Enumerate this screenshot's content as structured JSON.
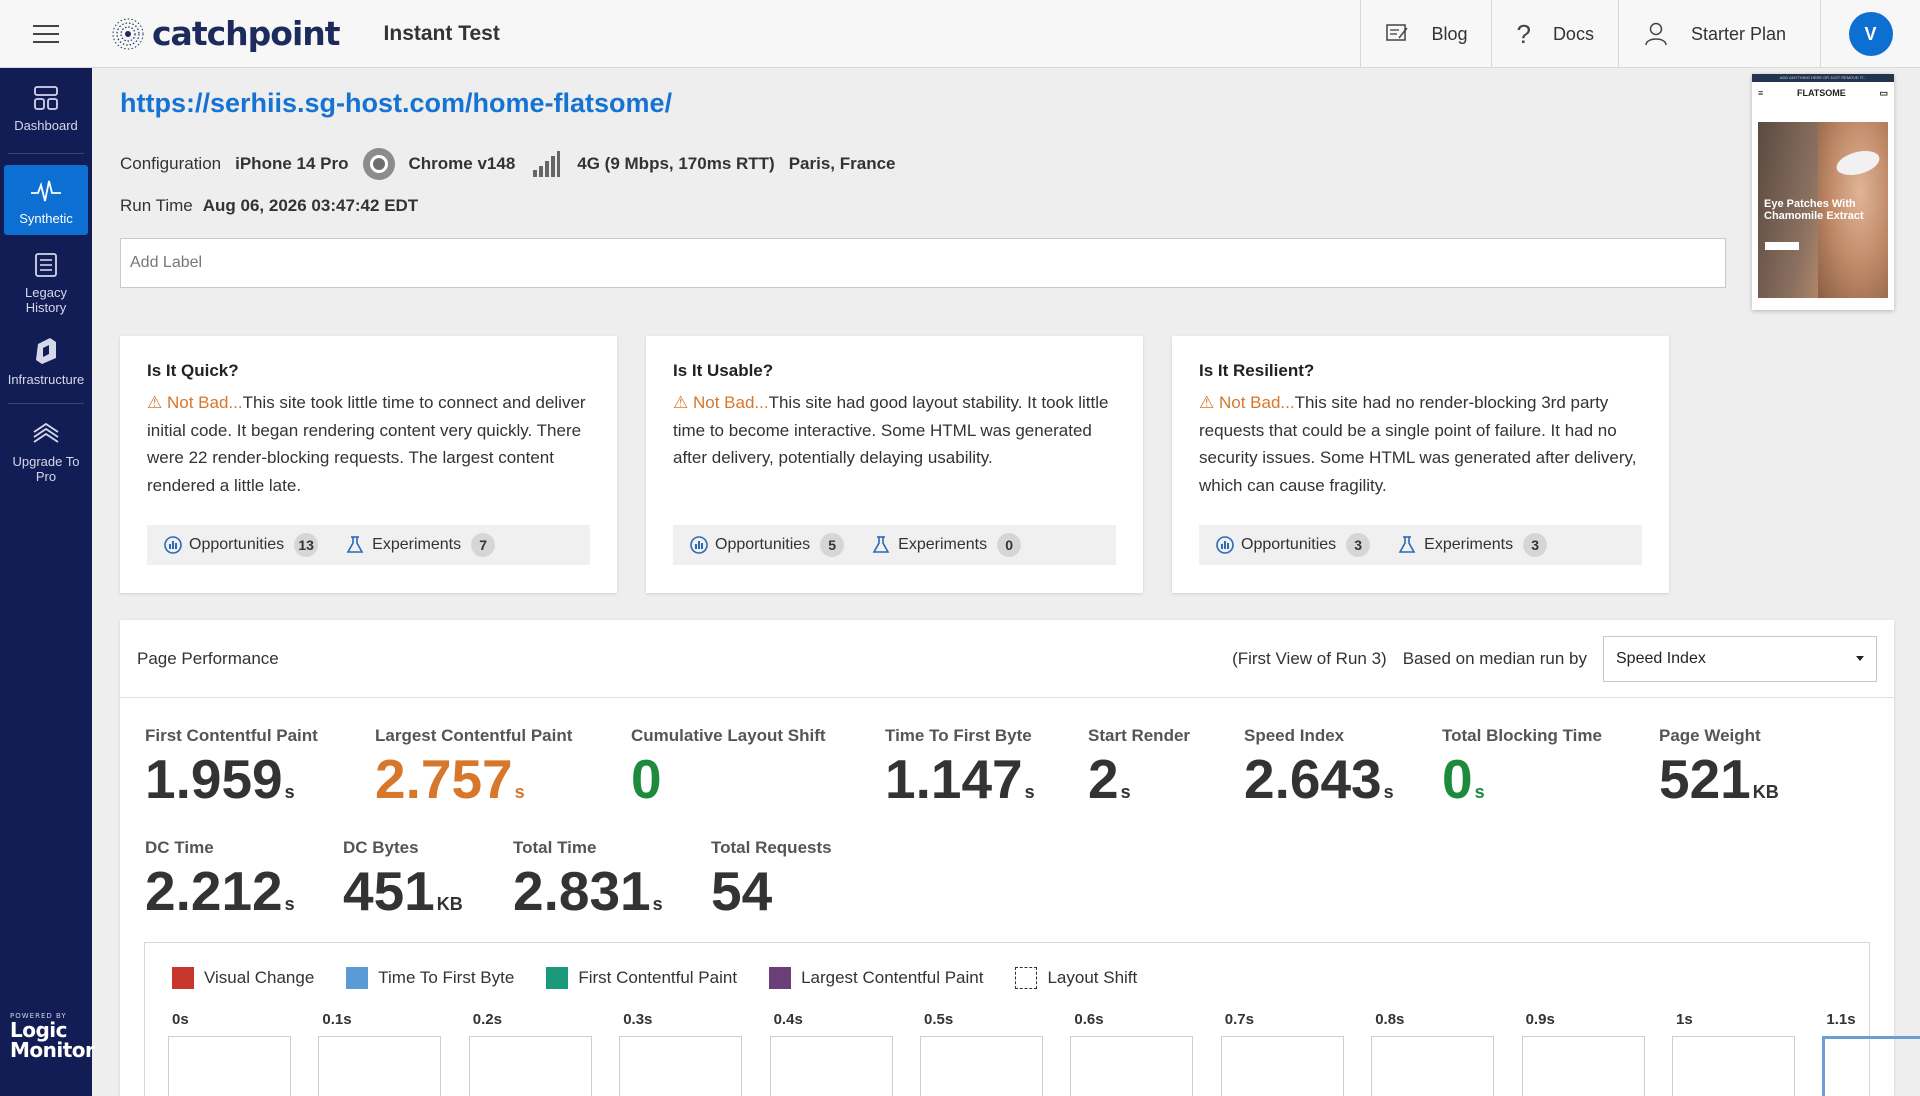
{
  "topbar": {
    "app_title": "Instant Test",
    "logo_text": "catchpoint",
    "blog_label": "Blog",
    "docs_label": "Docs",
    "plan_label": "Starter Plan",
    "avatar_initial": "V"
  },
  "sidebar": {
    "items": [
      {
        "label": "Dashboard",
        "icon": "dashboard-icon"
      },
      {
        "label": "Synthetic",
        "icon": "pulse-icon",
        "active": true
      },
      {
        "label": "Legacy History",
        "icon": "list-icon"
      },
      {
        "label": "Infrastructure",
        "icon": "infrastructure-icon"
      },
      {
        "label": "Upgrade To Pro",
        "icon": "layers-icon"
      }
    ],
    "powered_by": "POWERED BY",
    "brand_line1": "Logic",
    "brand_line2": "Monitor"
  },
  "test": {
    "url": "https://serhiis.sg-host.com/home-flatsome/",
    "config_label": "Configuration",
    "device": "iPhone 14 Pro",
    "browser": "Chrome v148",
    "connection": "4G (9 Mbps, 170ms RTT)",
    "location": "Paris, France",
    "run_time_label": "Run Time",
    "run_time": "Aug 06, 2026 03:47:42 EDT",
    "label_placeholder": "Add Label"
  },
  "thumbnail": {
    "banner": "ADD ANYTHING HERE OR JUST REMOVE IT...",
    "brand": "FLATSOME",
    "caption": "Eye Patches With Chamomile Extract"
  },
  "cards": [
    {
      "title": "Is It Quick?",
      "status": "Not Bad...",
      "text": "This site took little time to connect and deliver initial code. It began rendering content very quickly. There were 22 render-blocking requests. The largest content rendered a little late.",
      "opportunities_label": "Opportunities",
      "opportunities": "13",
      "experiments_label": "Experiments",
      "experiments": "7"
    },
    {
      "title": "Is It Usable?",
      "status": "Not Bad...",
      "text": "This site had good layout stability. It took little time to become interactive. Some HTML was generated after delivery, potentially delaying usability.",
      "opportunities_label": "Opportunities",
      "opportunities": "5",
      "experiments_label": "Experiments",
      "experiments": "0"
    },
    {
      "title": "Is It Resilient?",
      "status": "Not Bad...",
      "text": "This site had no render-blocking 3rd party requests that could be a single point of failure. It had no security issues. Some HTML was generated after delivery, which can cause fragility.",
      "opportunities_label": "Opportunities",
      "opportunities": "3",
      "experiments_label": "Experiments",
      "experiments": "3"
    }
  ],
  "performance": {
    "title": "Page Performance",
    "run_note": "(First View of Run 3)",
    "median_label": "Based on median run by",
    "median_select": "Speed Index",
    "metrics": [
      {
        "label": "First Contentful Paint",
        "value": "1.959",
        "unit": "s",
        "tone": "default"
      },
      {
        "label": "Largest Contentful Paint",
        "value": "2.757",
        "unit": "s",
        "tone": "orange"
      },
      {
        "label": "Cumulative Layout Shift",
        "value": "0",
        "unit": "",
        "tone": "green"
      },
      {
        "label": "Time To First Byte",
        "value": "1.147",
        "unit": "s",
        "tone": "default"
      },
      {
        "label": "Start Render",
        "value": "2",
        "unit": "s",
        "tone": "default"
      },
      {
        "label": "Speed Index",
        "value": "2.643",
        "unit": "s",
        "tone": "default"
      },
      {
        "label": "Total Blocking Time",
        "value": "0",
        "unit": "s",
        "tone": "green"
      },
      {
        "label": "Page Weight",
        "value": "521",
        "unit": "KB",
        "tone": "default"
      },
      {
        "label": "DC Time",
        "value": "2.212",
        "unit": "s",
        "tone": "default"
      },
      {
        "label": "DC Bytes",
        "value": "451",
        "unit": "KB",
        "tone": "default"
      },
      {
        "label": "Total Time",
        "value": "2.831",
        "unit": "s",
        "tone": "default"
      },
      {
        "label": "Total Requests",
        "value": "54",
        "unit": "",
        "tone": "default"
      }
    ],
    "legend": [
      {
        "label": "Visual Change",
        "color": "#c8372d"
      },
      {
        "label": "Time To First Byte",
        "color": "#5b9bd5"
      },
      {
        "label": "First Contentful Paint",
        "color": "#1a9a7a"
      },
      {
        "label": "Largest Contentful Paint",
        "color": "#6b3f78"
      },
      {
        "label": "Layout Shift",
        "color": "dashed"
      }
    ],
    "frames": [
      "0s",
      "0.1s",
      "0.2s",
      "0.3s",
      "0.4s",
      "0.5s",
      "0.6s",
      "0.7s",
      "0.8s",
      "0.9s",
      "1s",
      "1.1s"
    ]
  },
  "colors": {
    "accent": "#0d6fd1",
    "sidebar": "#131d55",
    "warning": "#d6772c",
    "good": "#1e8a3c"
  }
}
